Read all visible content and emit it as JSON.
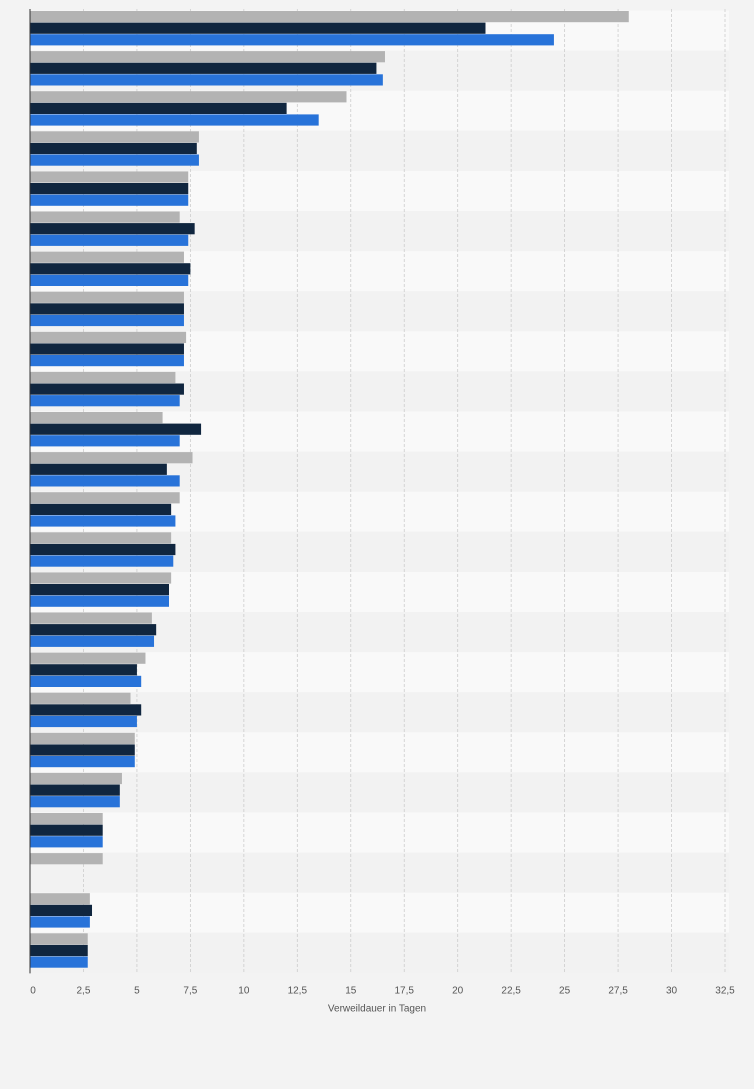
{
  "chart_data": {
    "type": "bar",
    "orientation": "horizontal",
    "xlabel": "Verweildauer in Tagen",
    "ylabel": "",
    "xlim": [
      0,
      32.5
    ],
    "x_ticks": [
      "0",
      "2,5",
      "5",
      "7,5",
      "10",
      "12,5",
      "15",
      "17,5",
      "20",
      "22,5",
      "25",
      "27,5",
      "30",
      "32,5"
    ],
    "grid": "vertical dashed",
    "series": [
      {
        "values": [
          28,
          16.6,
          14.8,
          7.9,
          7.4,
          7.0,
          7.2,
          7.2,
          7.3,
          6.8,
          6.2,
          7.6,
          7.0,
          6.6,
          6.6,
          5.7,
          5.4,
          4.7,
          4.9,
          4.3,
          3.4,
          3.4,
          2.8,
          2.7
        ]
      },
      {
        "values": [
          21.3,
          16.2,
          12.0,
          7.8,
          7.4,
          7.7,
          7.5,
          7.2,
          7.2,
          7.2,
          8.0,
          6.4,
          6.6,
          6.8,
          6.5,
          5.9,
          5.0,
          5.2,
          4.9,
          4.2,
          3.4,
          null,
          2.9,
          2.7
        ]
      },
      {
        "values": [
          24.5,
          16.5,
          13.5,
          7.9,
          7.4,
          7.4,
          7.4,
          7.2,
          7.2,
          7.0,
          7.0,
          7.0,
          6.8,
          6.7,
          6.5,
          5.8,
          5.2,
          5.0,
          4.9,
          4.2,
          3.4,
          null,
          2.8,
          2.7
        ]
      }
    ],
    "colors": {
      "series": [
        "#b3b3b3",
        "#10263f",
        "#2873d9"
      ],
      "band_light": "#f9f9f9",
      "band_dark": "#f2f2f2",
      "grid": "#cccccc",
      "axis": "#333333"
    }
  }
}
